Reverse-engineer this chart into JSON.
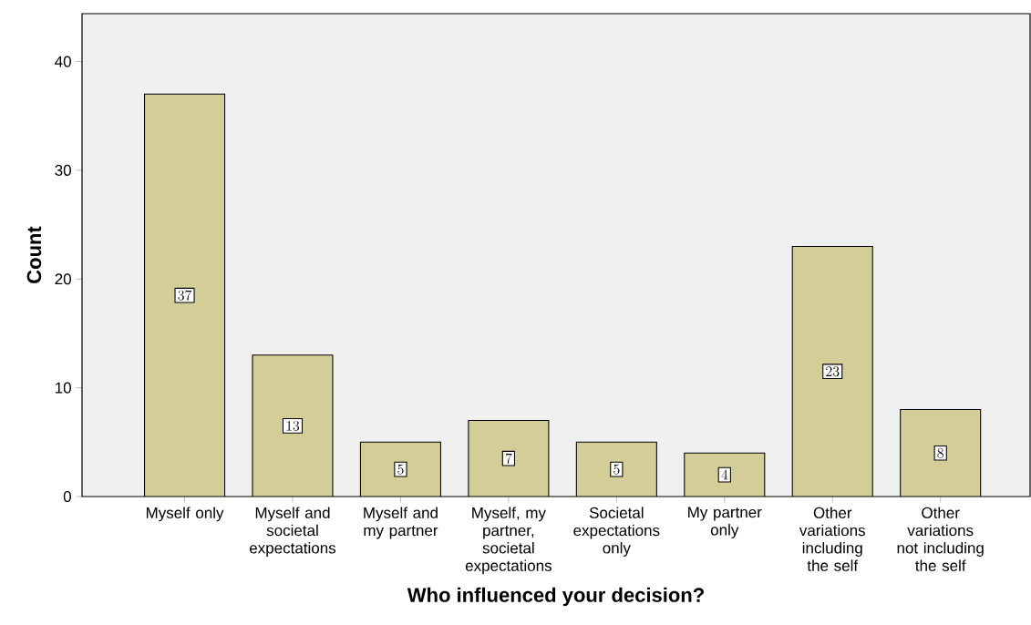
{
  "chart_data": {
    "type": "bar",
    "xlabel": "Who influenced your decision?",
    "ylabel": "Count",
    "categories": [
      "Myself only",
      "Myself and societal expectations",
      "Myself and my partner",
      "Myself, my partner, societal expectations",
      "Societal expectations only",
      "My partner only",
      "Other variations including the self",
      "Other variations not including the self"
    ],
    "values": [
      37,
      13,
      5,
      7,
      5,
      4,
      23,
      8
    ],
    "color": "#d3ce98",
    "ylim": [
      0,
      44.4
    ],
    "yticks": [
      0,
      10,
      20,
      30,
      40
    ],
    "data_labels": true
  }
}
